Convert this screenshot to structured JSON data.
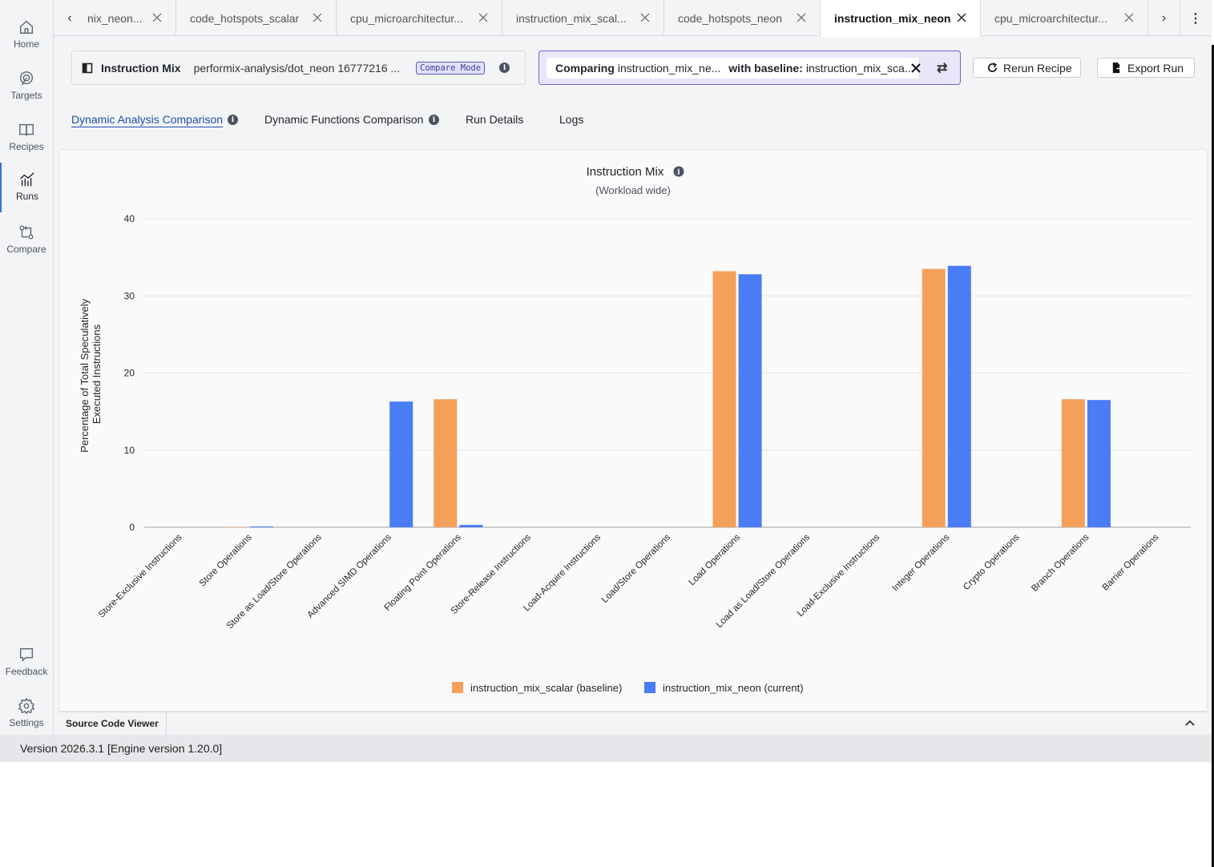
{
  "sidebar": {
    "items": [
      {
        "label": "Home",
        "icon": "home-icon"
      },
      {
        "label": "Targets",
        "icon": "target-icon"
      },
      {
        "label": "Recipes",
        "icon": "book-icon"
      },
      {
        "label": "Runs",
        "icon": "runs-chart-icon",
        "active": true
      },
      {
        "label": "Compare",
        "icon": "compare-icon"
      }
    ],
    "bottom": [
      {
        "label": "Feedback",
        "icon": "chat-bubble-icon"
      },
      {
        "label": "Settings",
        "icon": "gear-icon"
      }
    ]
  },
  "tabs": [
    {
      "label": "nix_neon..."
    },
    {
      "label": "code_hotspots_scalar"
    },
    {
      "label": "cpu_microarchitectur..."
    },
    {
      "label": "instruction_mix_scal..."
    },
    {
      "label": "code_hotspots_neon"
    },
    {
      "label": "instruction_mix_neon",
      "active": true
    },
    {
      "label": "cpu_microarchitectur..."
    }
  ],
  "header": {
    "title": "Instruction Mix",
    "path": "performix-analysis/dot_neon 16777216 ...",
    "badge": "Compare Mode",
    "compare": {
      "prefix": "Comparing",
      "current": "instruction_mix_ne...",
      "baseline_prefix": "with baseline:",
      "baseline": "instruction_mix_sca..."
    },
    "rerun_label": "Rerun Recipe",
    "export_label": "Export Run"
  },
  "subtabs": [
    {
      "label": "Dynamic Analysis Comparison",
      "active": true,
      "info": true
    },
    {
      "label": "Dynamic Functions Comparison",
      "info": true
    },
    {
      "label": "Run Details"
    },
    {
      "label": "Logs"
    }
  ],
  "chart_data": {
    "type": "bar",
    "title": "Instruction Mix",
    "subtitle": "(Workload wide)",
    "ylabel": "Percentage of Total Speculatively Executed Instructions",
    "ylim": [
      0,
      40
    ],
    "yticks": [
      0,
      10,
      20,
      30,
      40
    ],
    "grid": true,
    "legend_position": "bottom",
    "categories": [
      "Store-Exclusive Instructions",
      "Store Operations",
      "Store as Load/Store Operations",
      "Advanced SIMD Operations",
      "Floating Point Operations",
      "Store-Release Instructions",
      "Load-Acquire Instructions",
      "Load/Store Operations",
      "Load Operations",
      "Load as Load/Store Operations",
      "Load-Exclusive Instructions",
      "Integer Operations",
      "Crypto Operations",
      "Branch Operations",
      "Barrier Operations"
    ],
    "series": [
      {
        "name": "instruction_mix_scalar (baseline)",
        "color": "#f5a05a",
        "values": [
          0,
          0.05,
          0,
          0,
          16.6,
          0,
          0,
          0,
          33.2,
          0,
          0,
          33.5,
          0,
          16.6,
          0
        ]
      },
      {
        "name": "instruction_mix_neon (current)",
        "color": "#4a7cf6",
        "values": [
          0,
          0.1,
          0,
          16.3,
          0.3,
          0,
          0,
          0,
          32.8,
          0,
          0,
          33.9,
          0,
          16.5,
          0
        ]
      }
    ]
  },
  "bottom_panel": {
    "tab": "Source Code Viewer"
  },
  "status": {
    "version": "Version 2026.3.1 [Engine version 1.20.0]"
  }
}
